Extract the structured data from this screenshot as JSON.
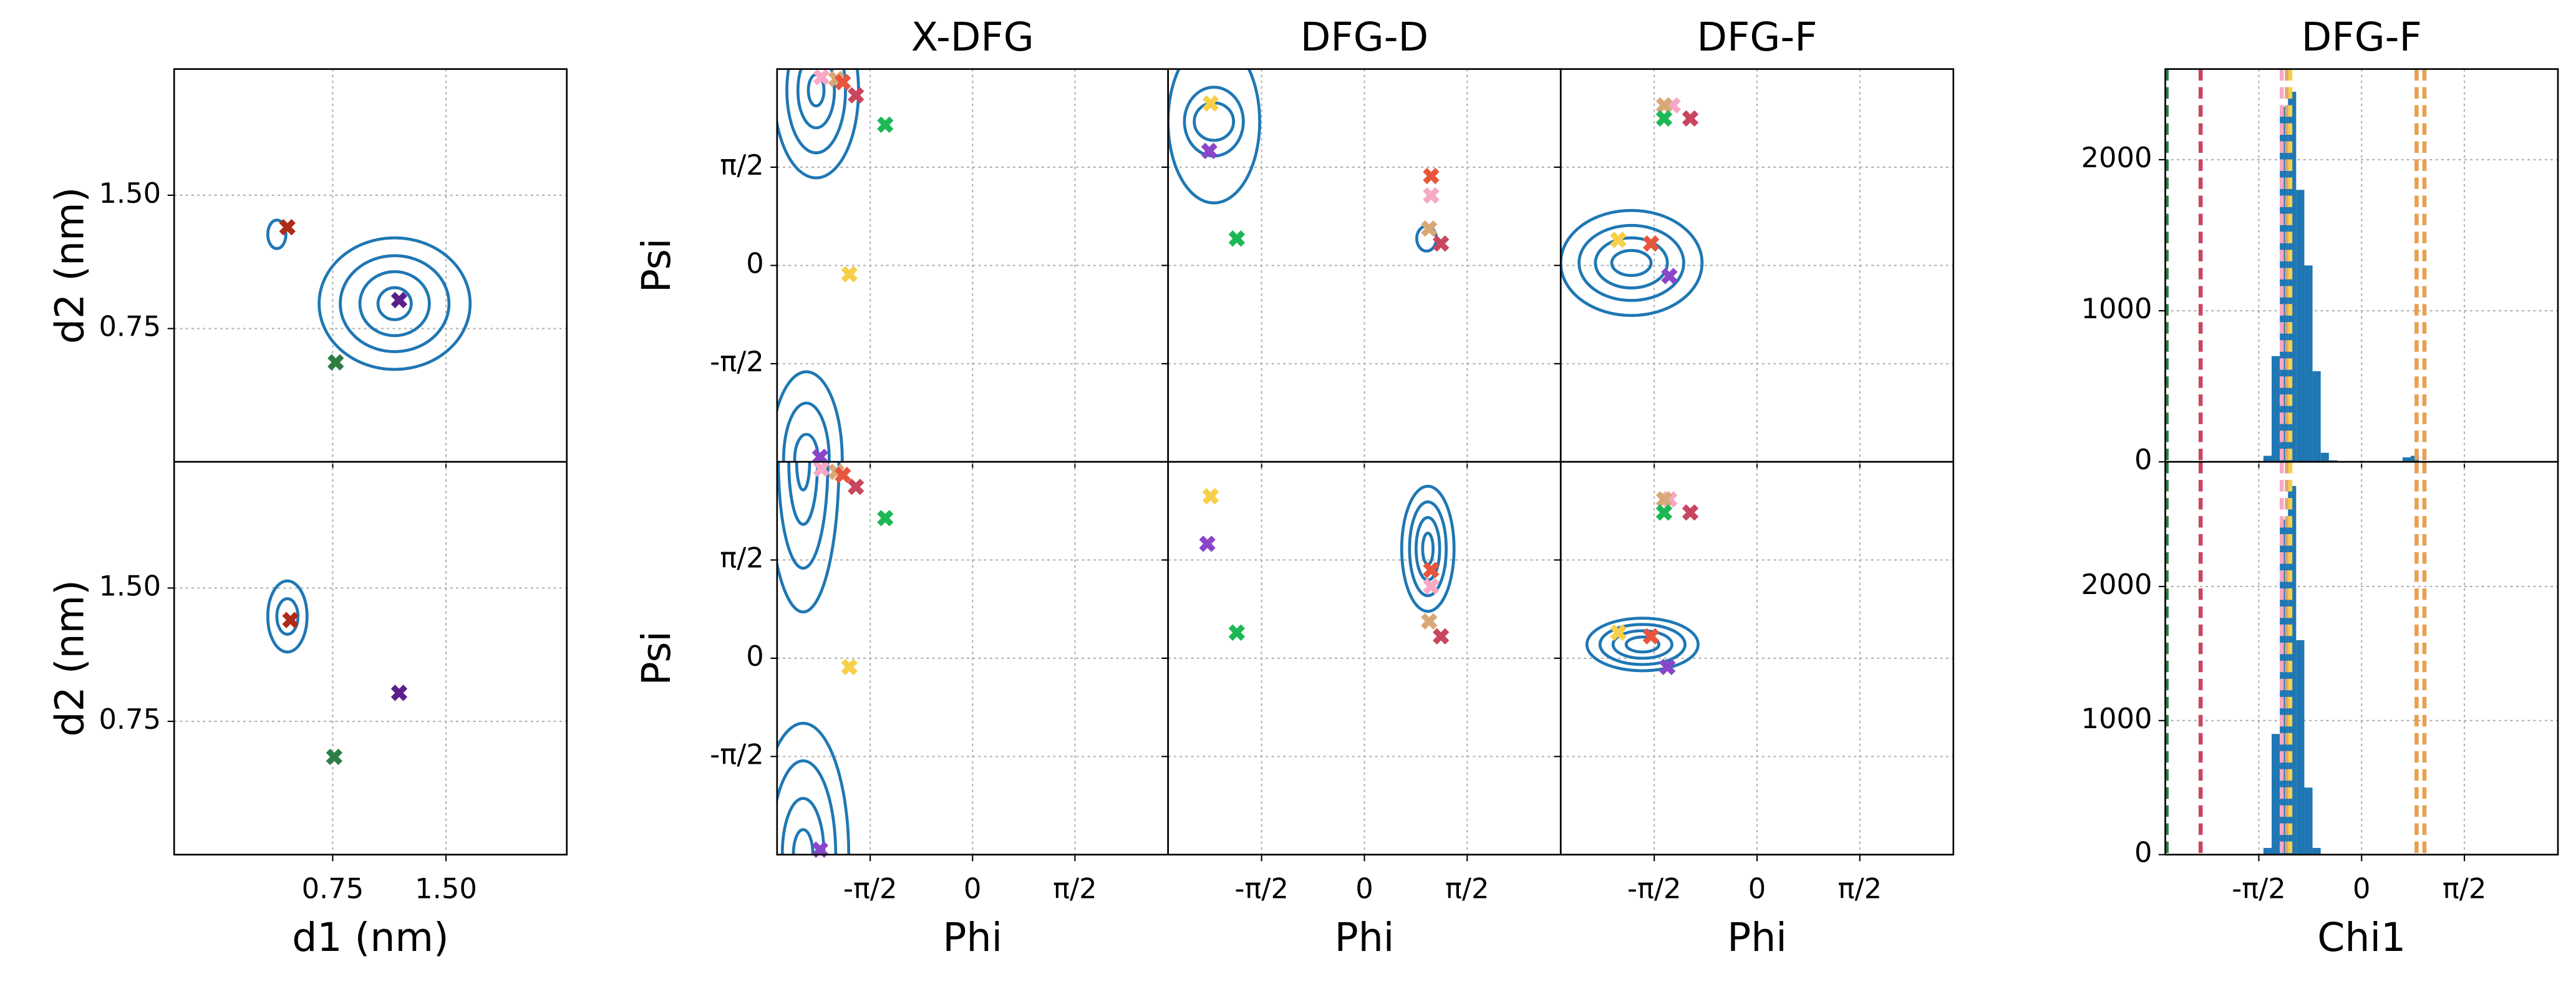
{
  "chart_data": [
    {
      "type": "scatter",
      "ylabel": "d2 (nm)",
      "xlim": [
        -0.3,
        2.3
      ],
      "ylim": [
        0,
        2.21
      ],
      "xticks": [
        0.75,
        1.5
      ],
      "yticks": [
        0.75,
        {
          "value": 1.5,
          "label": "1.50"
        }
      ],
      "xtick_labels": false,
      "ytick_labels": true,
      "grid": true,
      "contour_color": "#1f77b4",
      "contours": [
        {
          "x": 1.16,
          "y": 0.89,
          "rx": [
            0.5,
            0.36,
            0.23,
            0.11
          ],
          "ry": [
            0.37,
            0.27,
            0.18,
            0.09
          ]
        },
        {
          "x": 0.38,
          "y": 1.28,
          "rx": [
            0.06
          ],
          "ry": [
            0.08
          ]
        }
      ],
      "x": [
        0.45,
        1.19,
        0.77
      ],
      "y": [
        1.32,
        0.91,
        0.56
      ],
      "marker_colors": [
        "#b02a18",
        "#5b1f8c",
        "#2e7d45"
      ]
    },
    {
      "type": "scatter",
      "xlabel": "d1 (nm)",
      "ylabel": "d2 (nm)",
      "xlim": [
        -0.3,
        2.3
      ],
      "ylim": [
        0,
        2.21
      ],
      "xticks": [
        0.75,
        {
          "value": 1.5,
          "label": "1.50"
        }
      ],
      "yticks": [
        0.75,
        {
          "value": 1.5,
          "label": "1.50"
        }
      ],
      "xtick_labels": true,
      "ytick_labels": true,
      "grid": true,
      "contour_color": "#1f77b4",
      "contours": [
        {
          "x": 0.45,
          "y": 1.34,
          "rx": [
            0.13,
            0.07
          ],
          "ry": [
            0.2,
            0.1
          ]
        }
      ],
      "x": [
        0.47,
        1.19,
        0.76
      ],
      "y": [
        1.32,
        0.91,
        0.55
      ],
      "marker_colors": [
        "#b02a18",
        "#5b1f8c",
        "#2e7d45"
      ]
    },
    {
      "type": "scatter",
      "title": "X-DFG",
      "ylabel": "Psi",
      "xlim": [
        -3,
        3
      ],
      "ylim": [
        -3.14,
        3.14
      ],
      "xticks": [
        -1.5708,
        0,
        1.5708
      ],
      "yticks": [
        {
          "value": -1.5708,
          "label": "-π/2"
        },
        0,
        {
          "value": 1.5708,
          "label": "π/2"
        }
      ],
      "xtick_labels": false,
      "ytick_labels": true,
      "grid": true,
      "contour_color": "#1f77b4",
      "contours": [
        {
          "x": -2.4,
          "y": 2.8,
          "rx": [
            0.65,
            0.45,
            0.28,
            0.12
          ],
          "ry": [
            1.4,
            1.0,
            0.6,
            0.25
          ]
        },
        {
          "x": -2.55,
          "y": -3.1,
          "rx": [
            0.55,
            0.35,
            0.18
          ],
          "ry": [
            1.4,
            0.9,
            0.4
          ]
        }
      ],
      "x": [
        -2.32,
        -2.09,
        -1.99,
        -1.79,
        -1.34,
        -1.89,
        -2.34
      ],
      "y": [
        3.01,
        2.98,
        2.93,
        2.72,
        2.25,
        -0.14,
        -3.06
      ],
      "marker_colors": [
        "#f7a8c4",
        "#d9a877",
        "#e8553d",
        "#c8465f",
        "#1cb855",
        "#f7cf48",
        "#8a45c9"
      ]
    },
    {
      "type": "scatter",
      "title": "DFG-D",
      "xlim": [
        -3,
        3
      ],
      "ylim": [
        -3.14,
        3.14
      ],
      "xticks": [
        -1.5708,
        0,
        1.5708
      ],
      "yticks": [
        -1.5708,
        0,
        1.5708
      ],
      "xtick_labels": false,
      "ytick_labels": false,
      "grid": true,
      "contour_color": "#1f77b4",
      "contours": [
        {
          "x": -2.3,
          "y": 2.3,
          "rx": [
            0.7,
            0.45,
            0.3
          ],
          "ry": [
            1.3,
            0.55,
            0.3
          ]
        },
        {
          "x": 0.95,
          "y": 0.43,
          "rx": [
            0.15
          ],
          "ry": [
            0.2
          ]
        }
      ],
      "x": [
        -2.35,
        -2.37,
        -1.95,
        1.02,
        1.02,
        0.99,
        1.17
      ],
      "y": [
        2.59,
        1.83,
        0.43,
        1.43,
        1.12,
        0.59,
        0.35
      ],
      "marker_colors": [
        "#f7cf48",
        "#8a45c9",
        "#1cb855",
        "#e8553d",
        "#f7a8c4",
        "#d9a877",
        "#c8465f"
      ]
    },
    {
      "type": "scatter",
      "title": "DFG-F",
      "xlim": [
        -3,
        3
      ],
      "ylim": [
        -3.14,
        3.14
      ],
      "xticks": [
        -1.5708,
        0,
        1.5708
      ],
      "yticks": [
        -1.5708,
        0,
        1.5708
      ],
      "xtick_labels": false,
      "ytick_labels": false,
      "grid": true,
      "contour_color": "#1f77b4",
      "contours": [
        {
          "x": -1.92,
          "y": 0.04,
          "rx": [
            1.08,
            0.8,
            0.55,
            0.3
          ],
          "ry": [
            0.84,
            0.6,
            0.4,
            0.2
          ]
        }
      ],
      "x": [
        -1.29,
        -1.42,
        -1.42,
        -1.02,
        -1.62,
        -2.12,
        -1.34
      ],
      "y": [
        2.56,
        2.56,
        2.35,
        2.35,
        0.35,
        0.41,
        -0.17
      ],
      "marker_colors": [
        "#f7a8c4",
        "#d9a877",
        "#1cb855",
        "#c8465f",
        "#e8553d",
        "#f7cf48",
        "#8a45c9"
      ]
    },
    {
      "type": "scatter",
      "xlabel": "Phi",
      "ylabel": "Psi",
      "xlim": [
        -3,
        3
      ],
      "ylim": [
        -3.14,
        3.14
      ],
      "xticks": [
        {
          "value": -1.5708,
          "label": "-π/2"
        },
        0,
        {
          "value": 1.5708,
          "label": "π/2"
        }
      ],
      "yticks": [
        {
          "value": -1.5708,
          "label": "-π/2"
        },
        0,
        {
          "value": 1.5708,
          "label": "π/2"
        }
      ],
      "xtick_labels": true,
      "ytick_labels": true,
      "grid": true,
      "contour_color": "#1f77b4",
      "contours": [
        {
          "x": -2.6,
          "y": 3.14,
          "rx": [
            0.55,
            0.38,
            0.22,
            0.1
          ],
          "ry": [
            2.4,
            1.7,
            1.0,
            0.45
          ]
        },
        {
          "x": -2.6,
          "y": -3.14,
          "rx": [
            0.7,
            0.5,
            0.32,
            0.15
          ],
          "ry": [
            2.1,
            1.5,
            0.9,
            0.4
          ]
        }
      ],
      "x": [
        -2.32,
        -2.09,
        -1.99,
        -1.79,
        -1.34,
        -1.89,
        -2.34
      ],
      "y": [
        3.03,
        2.98,
        2.93,
        2.74,
        2.24,
        -0.14,
        -3.06
      ],
      "marker_colors": [
        "#f7a8c4",
        "#d9a877",
        "#e8553d",
        "#c8465f",
        "#1cb855",
        "#f7cf48",
        "#8a45c9"
      ]
    },
    {
      "type": "scatter",
      "xlabel": "Phi",
      "xlim": [
        -3,
        3
      ],
      "ylim": [
        -3.14,
        3.14
      ],
      "xticks": [
        {
          "value": -1.5708,
          "label": "-π/2"
        },
        0,
        {
          "value": 1.5708,
          "label": "π/2"
        }
      ],
      "yticks": [
        -1.5708,
        0,
        1.5708
      ],
      "xtick_labels": true,
      "ytick_labels": false,
      "grid": true,
      "contour_color": "#1f77b4",
      "contours": [
        {
          "x": 0.97,
          "y": 1.75,
          "rx": [
            0.4,
            0.28,
            0.18,
            0.08
          ],
          "ry": [
            1.0,
            0.75,
            0.5,
            0.25
          ]
        }
      ],
      "x": [
        -2.35,
        -2.4,
        -1.95,
        1.02,
        1.02,
        0.99,
        1.17
      ],
      "y": [
        2.59,
        1.83,
        0.41,
        1.41,
        1.15,
        0.59,
        0.35
      ],
      "marker_colors": [
        "#f7cf48",
        "#8a45c9",
        "#1cb855",
        "#e8553d",
        "#f7a8c4",
        "#d9a877",
        "#c8465f"
      ]
    },
    {
      "type": "scatter",
      "xlabel": "Phi",
      "xlim": [
        -3,
        3
      ],
      "ylim": [
        -3.14,
        3.14
      ],
      "xticks": [
        {
          "value": -1.5708,
          "label": "-π/2"
        },
        0,
        {
          "value": 1.5708,
          "label": "π/2"
        }
      ],
      "yticks": [
        -1.5708,
        0,
        1.5708
      ],
      "xtick_labels": true,
      "ytick_labels": false,
      "grid": true,
      "contour_color": "#1f77b4",
      "contours": [
        {
          "x": -1.75,
          "y": 0.22,
          "rx": [
            0.85,
            0.65,
            0.45,
            0.25
          ],
          "ry": [
            0.42,
            0.32,
            0.22,
            0.12
          ]
        }
      ],
      "x": [
        -1.34,
        -1.42,
        -1.42,
        -1.02,
        -1.62,
        -2.12,
        -1.37
      ],
      "y": [
        2.54,
        2.54,
        2.33,
        2.33,
        0.35,
        0.41,
        -0.14
      ],
      "marker_colors": [
        "#f7a8c4",
        "#d9a877",
        "#1cb855",
        "#c8465f",
        "#e8553d",
        "#f7cf48",
        "#8a45c9"
      ]
    },
    {
      "type": "histogram",
      "title": "DFG-F",
      "xlim": [
        -3,
        3
      ],
      "ylim": [
        0,
        2600
      ],
      "xticks": [
        -1.5708,
        0,
        1.5708
      ],
      "yticks": [
        0,
        1000,
        2000
      ],
      "xtick_labels": false,
      "ytick_labels": true,
      "grid": true,
      "color": "#1f77b4",
      "bins": [
        -1.5,
        -1.375,
        -1.25,
        -1.125,
        -1.0,
        -0.875,
        -0.75,
        -0.625,
        -0.5,
        -0.375,
        -0.25,
        -0.125,
        0,
        0.125,
        0.25,
        0.375,
        0.5,
        0.625,
        0.75,
        0.875,
        1.0
      ],
      "values": [
        40,
        700,
        2350,
        2450,
        1800,
        1300,
        600,
        60,
        10,
        0,
        0,
        0,
        0,
        0,
        0,
        0,
        0,
        30,
        40,
        5
      ],
      "reference_lines": {
        "values": [
          -2.98,
          -2.46,
          -1.22,
          -1.14,
          -1.09,
          0.84,
          0.96
        ],
        "colors": [
          "#2e7d45",
          "#c8465f",
          "#f7a8c4",
          "#d9a877",
          "#f7cf48",
          "#e8a050",
          "#e8a050"
        ]
      }
    },
    {
      "type": "histogram",
      "xlabel": "Chi1",
      "xlim": [
        -3,
        3
      ],
      "ylim": [
        0,
        2930
      ],
      "xticks": [
        {
          "value": -1.5708,
          "label": "-π/2"
        },
        0,
        {
          "value": 1.5708,
          "label": "π/2"
        }
      ],
      "yticks": [
        0,
        1000,
        2000
      ],
      "xtick_labels": true,
      "ytick_labels": true,
      "grid": true,
      "color": "#1f77b4",
      "bins": [
        -1.5,
        -1.375,
        -1.25,
        -1.125,
        -1.0,
        -0.875,
        -0.75,
        -0.625,
        -0.5,
        -0.375,
        -0.25,
        -0.125,
        0,
        0.125,
        0.25,
        0.375,
        0.5,
        0.625,
        0.75,
        0.875,
        1.0
      ],
      "values": [
        50,
        900,
        2500,
        2750,
        1600,
        500,
        50,
        0,
        0,
        0,
        0,
        0,
        0,
        0,
        0,
        0,
        0,
        0,
        0,
        0
      ],
      "reference_lines": {
        "values": [
          -2.98,
          -2.46,
          -1.22,
          -1.14,
          -1.09,
          0.84,
          0.96
        ],
        "colors": [
          "#2e7d45",
          "#c8465f",
          "#f7a8c4",
          "#d9a877",
          "#f7cf48",
          "#e8a050",
          "#e8a050"
        ]
      }
    }
  ]
}
